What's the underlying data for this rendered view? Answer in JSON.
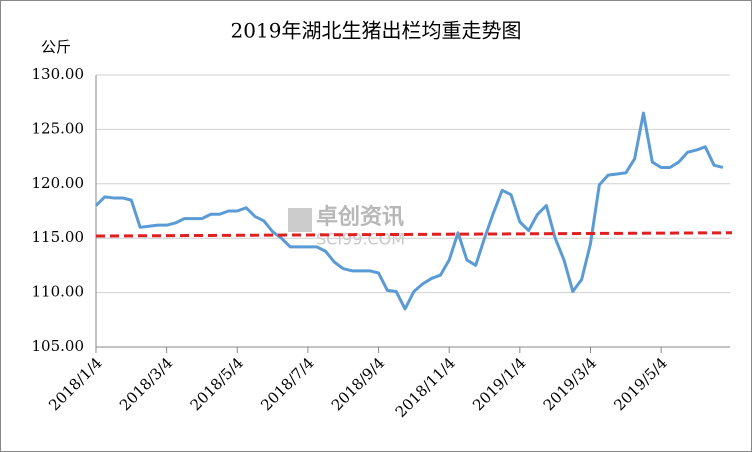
{
  "chart_data": {
    "type": "line",
    "title": "2019年湖北生猪出栏均重走势图",
    "y_label": "公斤",
    "watermark": "卓创资讯",
    "watermark_sub": "SCI99.COM",
    "categories": [
      "2018/1/4",
      null,
      null,
      null,
      null,
      null,
      null,
      null,
      "2018/3/4",
      null,
      null,
      null,
      null,
      null,
      null,
      null,
      "2018/5/4",
      null,
      null,
      null,
      null,
      null,
      null,
      null,
      "2018/7/4",
      null,
      null,
      null,
      null,
      null,
      null,
      null,
      "2018/9/4",
      null,
      null,
      null,
      null,
      null,
      null,
      null,
      "2018/11/4",
      null,
      null,
      null,
      null,
      null,
      null,
      null,
      "2019/1/4",
      null,
      null,
      null,
      null,
      null,
      null,
      null,
      "2019/3/4",
      null,
      null,
      null,
      null,
      null,
      null,
      null,
      "2019/5/4",
      null,
      null,
      null,
      null,
      null,
      null,
      null
    ],
    "series": [
      {
        "color": "#5b9bd5",
        "values": [
          118.0,
          118.8,
          118.7,
          118.7,
          118.5,
          116.0,
          116.1,
          116.2,
          116.2,
          116.4,
          116.8,
          116.8,
          116.8,
          117.2,
          117.2,
          117.5,
          117.5,
          117.8,
          117.0,
          116.6,
          115.6,
          115.0,
          114.2,
          114.2,
          114.2,
          114.2,
          113.8,
          112.8,
          112.2,
          112.0,
          112.0,
          112.0,
          111.8,
          110.2,
          110.1,
          108.5,
          110.1,
          110.8,
          111.3,
          111.6,
          113.0,
          115.5,
          113.0,
          112.5,
          115.0,
          117.3,
          119.4,
          119.0,
          116.5,
          115.7,
          117.2,
          118.0,
          115.0,
          113.0,
          110.1,
          111.2,
          114.5,
          119.9,
          120.8,
          120.9,
          121.0,
          122.3,
          126.5,
          122.0,
          121.5,
          121.5,
          122.0,
          122.9,
          123.1,
          123.4,
          121.7,
          121.5
        ]
      }
    ],
    "trend": {
      "color": "#e02020",
      "values": [
        115.2,
        115.5
      ]
    },
    "ylim": [
      105,
      130
    ],
    "yticks": [
      {
        "value": 105,
        "label": "105.00"
      },
      {
        "value": 110,
        "label": "110.00"
      },
      {
        "value": 115,
        "label": "115.00"
      },
      {
        "value": 120,
        "label": "120.00"
      },
      {
        "value": 125,
        "label": "125.00"
      },
      {
        "value": 130,
        "label": "130.00"
      }
    ],
    "grid": true
  }
}
